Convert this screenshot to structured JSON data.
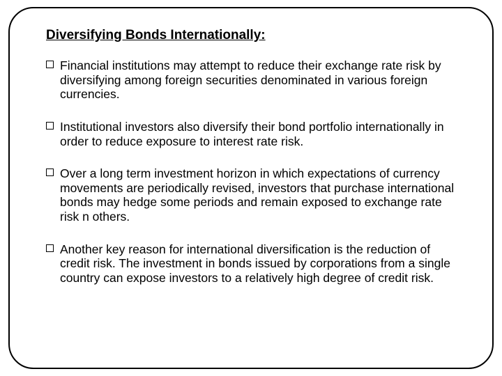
{
  "slide": {
    "title": "Diversifying Bonds Internationally:",
    "bullets": [
      "Financial institutions may attempt to reduce their exchange rate risk by diversifying among foreign securities denominated in various foreign currencies.",
      "Institutional investors also diversify their bond portfolio internationally in order to reduce exposure to interest rate risk.",
      "Over a long term investment horizon in which expectations of currency movements are periodically revised, investors that purchase international bonds may hedge some periods and remain exposed to exchange rate risk n others.",
      "Another key reason for international diversification is the reduction of credit risk. The investment in bonds issued by corporations from a single country can expose investors to a relatively high degree of credit risk."
    ],
    "colors": {
      "background": "#ffffff",
      "border": "#000000",
      "text": "#000000"
    },
    "typography": {
      "title_fontsize": 19,
      "title_weight": "bold",
      "title_underline": true,
      "body_fontsize": 17.5,
      "font_family": "Arial"
    },
    "layout": {
      "border_radius": 36,
      "border_width": 2,
      "bullet_marker": "hollow-square"
    }
  }
}
